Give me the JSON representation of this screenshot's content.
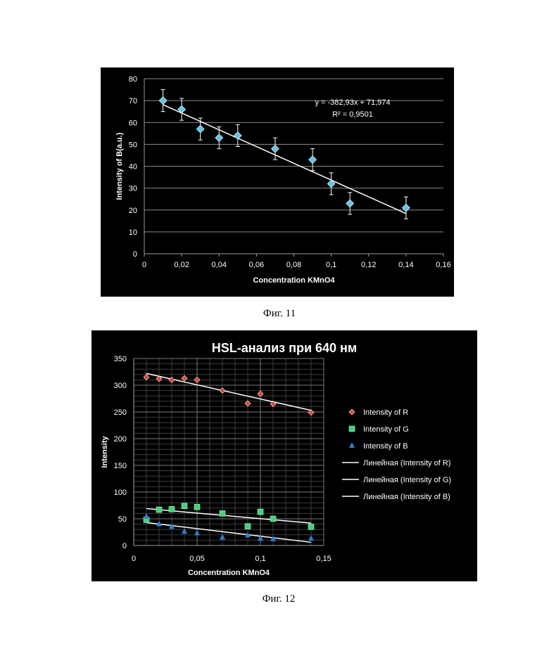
{
  "captions": {
    "fig11": "Фиг. 11",
    "fig12": "Фиг. 12"
  },
  "chart_data": [
    {
      "type": "scatter",
      "title": "",
      "xlabel": "Concentration KMnO4",
      "ylabel": "Intensity of B(a.u.)",
      "xlim": [
        0,
        0.16
      ],
      "ylim": [
        0,
        80
      ],
      "xticks": [
        "0",
        "0,02",
        "0,04",
        "0,06",
        "0,08",
        "0,1",
        "0,12",
        "0,14",
        "0,16"
      ],
      "yticks": [
        "0",
        "10",
        "20",
        "30",
        "40",
        "50",
        "60",
        "70",
        "80"
      ],
      "grid": "horizontal",
      "series": [
        {
          "x": [
            0.01,
            0.02,
            0.03,
            0.04,
            0.05,
            0.07,
            0.09,
            0.1,
            0.11,
            0.14
          ],
          "y": [
            70,
            66,
            57,
            53,
            54,
            48,
            43,
            32,
            23,
            21
          ],
          "error": 5,
          "color": "#5fc6e8",
          "marker": "diamond"
        }
      ],
      "trendline": {
        "slope": -382.93,
        "intercept": 71.974,
        "x_range": [
          0.01,
          0.14
        ],
        "color": "#ffffff"
      },
      "annotations": [
        "y = -382,93x + 71,974",
        "R² = 0,9501"
      ]
    },
    {
      "type": "scatter",
      "title": "HSL-анализ при 640 нм",
      "xlabel": "Concentration KMnO4",
      "ylabel": "Intensity",
      "xlim": [
        0,
        0.15
      ],
      "ylim": [
        0,
        350
      ],
      "xticks": [
        "0",
        "0,05",
        "0,1",
        "0,15"
      ],
      "yticks": [
        "0",
        "50",
        "100",
        "150",
        "200",
        "250",
        "300",
        "350"
      ],
      "grid": "both",
      "legend_position": "right",
      "series": [
        {
          "name": "Intensity of R",
          "color": "#e8402a",
          "marker": "diamond",
          "x": [
            0.01,
            0.02,
            0.03,
            0.04,
            0.05,
            0.07,
            0.09,
            0.1,
            0.11,
            0.14
          ],
          "y": [
            315,
            312,
            310,
            313,
            310,
            290,
            266,
            284,
            265,
            249
          ]
        },
        {
          "name": "Intensity of G",
          "color": "#3fd47a",
          "marker": "square",
          "x": [
            0.01,
            0.02,
            0.03,
            0.04,
            0.05,
            0.07,
            0.09,
            0.1,
            0.11,
            0.14
          ],
          "y": [
            48,
            67,
            68,
            74,
            72,
            60,
            36,
            63,
            50,
            35
          ]
        },
        {
          "name": "Intensity of B",
          "color": "#2a7fd4",
          "marker": "triangle",
          "x": [
            0.01,
            0.02,
            0.03,
            0.04,
            0.05,
            0.07,
            0.09,
            0.1,
            0.11,
            0.14
          ],
          "y": [
            54,
            40,
            35,
            26,
            23,
            15,
            19,
            13,
            12,
            13
          ]
        }
      ],
      "trendlines": [
        {
          "name": "Линейная (Intensity of R)",
          "y_start": 322,
          "y_end": 253,
          "x_range": [
            0.01,
            0.14
          ]
        },
        {
          "name": "Линейная (Intensity of G)",
          "y_start": 69,
          "y_end": 42,
          "x_range": [
            0.01,
            0.14
          ]
        },
        {
          "name": "Линейная (Intensity of B)",
          "y_start": 43,
          "y_end": 6,
          "x_range": [
            0.01,
            0.14
          ]
        }
      ]
    }
  ]
}
